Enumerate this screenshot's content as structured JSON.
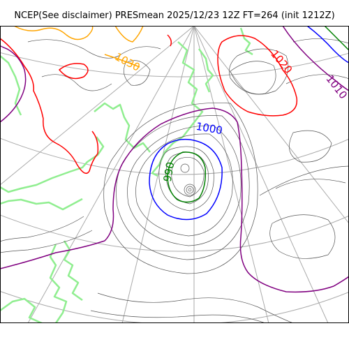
{
  "title": "NCEP(See disclaimer) PRESmean 2025/12/23 12Z FT=264 (init 1212Z)",
  "colors": {
    "background": "#ffffff",
    "frame": "#000000",
    "graticule": "#aaaaaa",
    "coastline": "#90ee90",
    "isobar_thin": "#555555",
    "isobar_990": "#008000",
    "isobar_1000": "#0000ff",
    "isobar_1010": "#800080",
    "isobar_1020": "#ff0000",
    "isobar_1030": "#ffa500"
  },
  "contour_labels": [
    {
      "text": "990",
      "color": "#008000"
    },
    {
      "text": "1000",
      "color": "#0000ff"
    },
    {
      "text": "1010",
      "color": "#800080"
    },
    {
      "text": "1020",
      "color": "#ff0000"
    },
    {
      "text": "1030",
      "color": "#ffa500"
    }
  ]
}
